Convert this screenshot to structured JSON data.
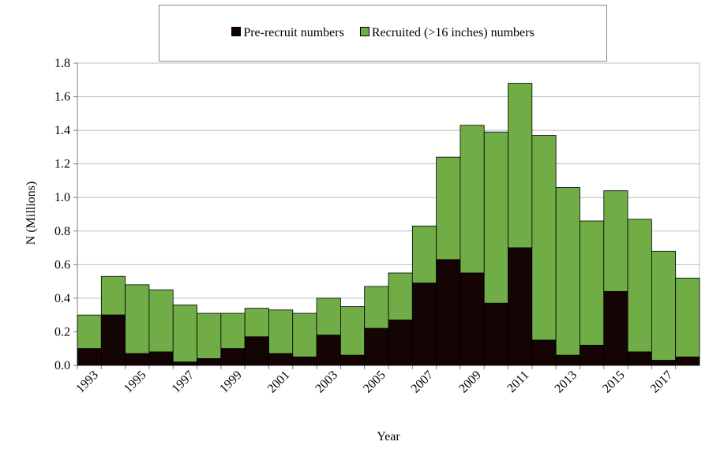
{
  "chart_data": {
    "type": "bar",
    "stacked": true,
    "xlabel": "Year",
    "ylabel": "N (Millions)",
    "ylim": [
      0,
      1.8
    ],
    "yticks": [
      "0.0",
      "0.2",
      "0.4",
      "0.6",
      "0.8",
      "1.0",
      "1.2",
      "1.4",
      "1.6",
      "1.8"
    ],
    "grid": true,
    "legend_position": "top",
    "categories": [
      "1993",
      "1994",
      "1995",
      "1996",
      "1997",
      "1998",
      "1999",
      "2000",
      "2001",
      "2002",
      "2003",
      "2004",
      "2005",
      "2006",
      "2007",
      "2008",
      "2009",
      "2010",
      "2011",
      "2012",
      "2013",
      "2014",
      "2015",
      "2016",
      "2017",
      "2018"
    ],
    "xtick_labels": [
      "1993",
      "1995",
      "1997",
      "1999",
      "2001",
      "2003",
      "2005",
      "2007",
      "2009",
      "2011",
      "2013",
      "2015",
      "2017"
    ],
    "series": [
      {
        "name": "Pre-recruit numbers",
        "color": "#140404",
        "values": [
          0.1,
          0.3,
          0.07,
          0.08,
          0.02,
          0.04,
          0.1,
          0.17,
          0.07,
          0.05,
          0.18,
          0.06,
          0.22,
          0.27,
          0.49,
          0.63,
          0.55,
          0.37,
          0.7,
          0.15,
          0.06,
          0.12,
          0.44,
          0.08,
          0.03,
          0.05
        ]
      },
      {
        "name": "Recruited (>16 inches) numbers",
        "color": "#70ad47",
        "values": [
          0.2,
          0.23,
          0.41,
          0.37,
          0.34,
          0.27,
          0.21,
          0.17,
          0.26,
          0.26,
          0.22,
          0.29,
          0.25,
          0.28,
          0.34,
          0.61,
          0.88,
          1.02,
          0.98,
          1.22,
          1.0,
          0.74,
          0.6,
          0.79,
          0.65,
          0.47
        ]
      }
    ]
  }
}
